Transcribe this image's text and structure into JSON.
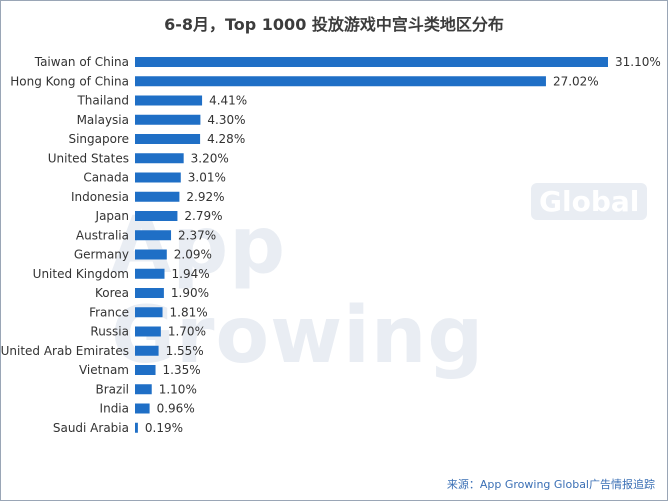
{
  "title": "6-8月，Top 1000 投放游戏中宫斗类地区分布",
  "source": "来源：App Growing Global广告情报追踪",
  "watermark": {
    "text": "App Growing",
    "badge": "Global"
  },
  "colors": {
    "bar": "#1f6fc6",
    "text": "#333333",
    "title": "#3c3c3c"
  },
  "chart_data": {
    "type": "bar",
    "orientation": "horizontal",
    "title": "6-8月，Top 1000 投放游戏中宫斗类地区分布",
    "categories": [
      "Taiwan of China",
      "Hong Kong of China",
      "Thailand",
      "Malaysia",
      "Singapore",
      "United States",
      "Canada",
      "Indonesia",
      "Japan",
      "Australia",
      "Germany",
      "United Kingdom",
      "Korea",
      "France",
      "Russia",
      "United Arab Emirates",
      "Vietnam",
      "Brazil",
      "India",
      "Saudi Arabia"
    ],
    "values": [
      31.1,
      27.02,
      4.41,
      4.3,
      4.28,
      3.2,
      3.01,
      2.92,
      2.79,
      2.37,
      2.09,
      1.94,
      1.9,
      1.81,
      1.7,
      1.55,
      1.35,
      1.1,
      0.96,
      0.19
    ],
    "value_labels": [
      "31.10%",
      "27.02%",
      "4.41%",
      "4.30%",
      "4.28%",
      "3.20%",
      "3.01%",
      "2.92%",
      "2.79%",
      "2.37%",
      "2.09%",
      "1.94%",
      "1.90%",
      "1.81%",
      "1.70%",
      "1.55%",
      "1.35%",
      "1.10%",
      "0.96%",
      "0.19%"
    ],
    "unit": "%",
    "xlim": [
      0,
      31.1
    ],
    "grid": false,
    "legend": "none"
  }
}
